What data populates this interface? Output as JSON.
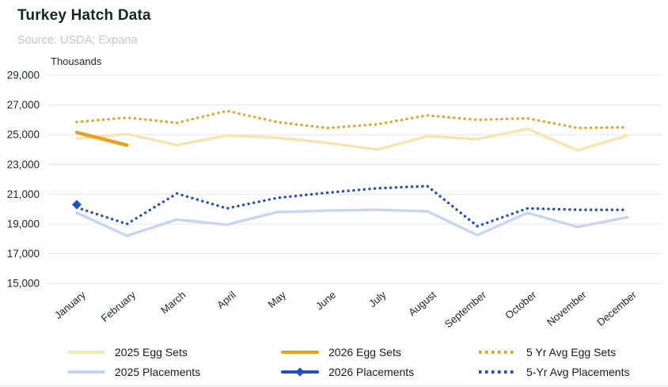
{
  "header": {
    "title": "Turkey Hatch Data",
    "source": "Source: USDA; Expana"
  },
  "chart_data": {
    "type": "line",
    "title": "Turkey Hatch Data",
    "subtitle": "Source: USDA; Expana",
    "unit_label": "Thousands",
    "xlabel": "",
    "ylabel": "Thousands",
    "ylim": [
      15000,
      29000
    ],
    "y_ticks": [
      29000,
      27000,
      25000,
      23000,
      21000,
      19000,
      17000,
      15000
    ],
    "y_tick_labels": [
      "29,000",
      "27,000",
      "25,000",
      "23,000",
      "21,000",
      "19,000",
      "17,000",
      "15,000"
    ],
    "grid": "horizontal",
    "legend_position": "bottom",
    "categories": [
      "January",
      "February",
      "March",
      "April",
      "May",
      "June",
      "July",
      "August",
      "September",
      "October",
      "November",
      "December"
    ],
    "series": [
      {
        "name": "2025 Egg Sets",
        "color": "#F9E3B0",
        "style": "solid",
        "values": [
          24750,
          25050,
          24300,
          24950,
          24800,
          24450,
          24000,
          24900,
          24700,
          25400,
          23950,
          24950
        ]
      },
      {
        "name": "2026 Egg Sets",
        "color": "#E8A21D",
        "style": "solid-bold",
        "values": [
          25150,
          24300,
          null,
          null,
          null,
          null,
          null,
          null,
          null,
          null,
          null,
          null
        ]
      },
      {
        "name": "5 Yr Avg Egg Sets",
        "color": "#E8A21D",
        "style": "dotted",
        "values": [
          25850,
          26150,
          25800,
          26600,
          25850,
          25450,
          25700,
          26300,
          26000,
          26100,
          25450,
          25500
        ]
      },
      {
        "name": "2025 Placements",
        "color": "#C7D5F1",
        "style": "solid",
        "values": [
          19750,
          18200,
          19300,
          18950,
          19800,
          19900,
          19950,
          19850,
          18250,
          19750,
          18800,
          19450
        ]
      },
      {
        "name": "2026 Placements",
        "color": "#1E4FC9",
        "style": "solid-diamond",
        "values": [
          20300,
          null,
          null,
          null,
          null,
          null,
          null,
          null,
          null,
          null,
          null,
          null
        ]
      },
      {
        "name": "5-Yr Avg Placements",
        "color": "#1E4FC9",
        "style": "dotted",
        "values": [
          20100,
          19000,
          21050,
          20050,
          20750,
          21100,
          21400,
          21550,
          18850,
          20050,
          19950,
          19950
        ]
      }
    ]
  }
}
